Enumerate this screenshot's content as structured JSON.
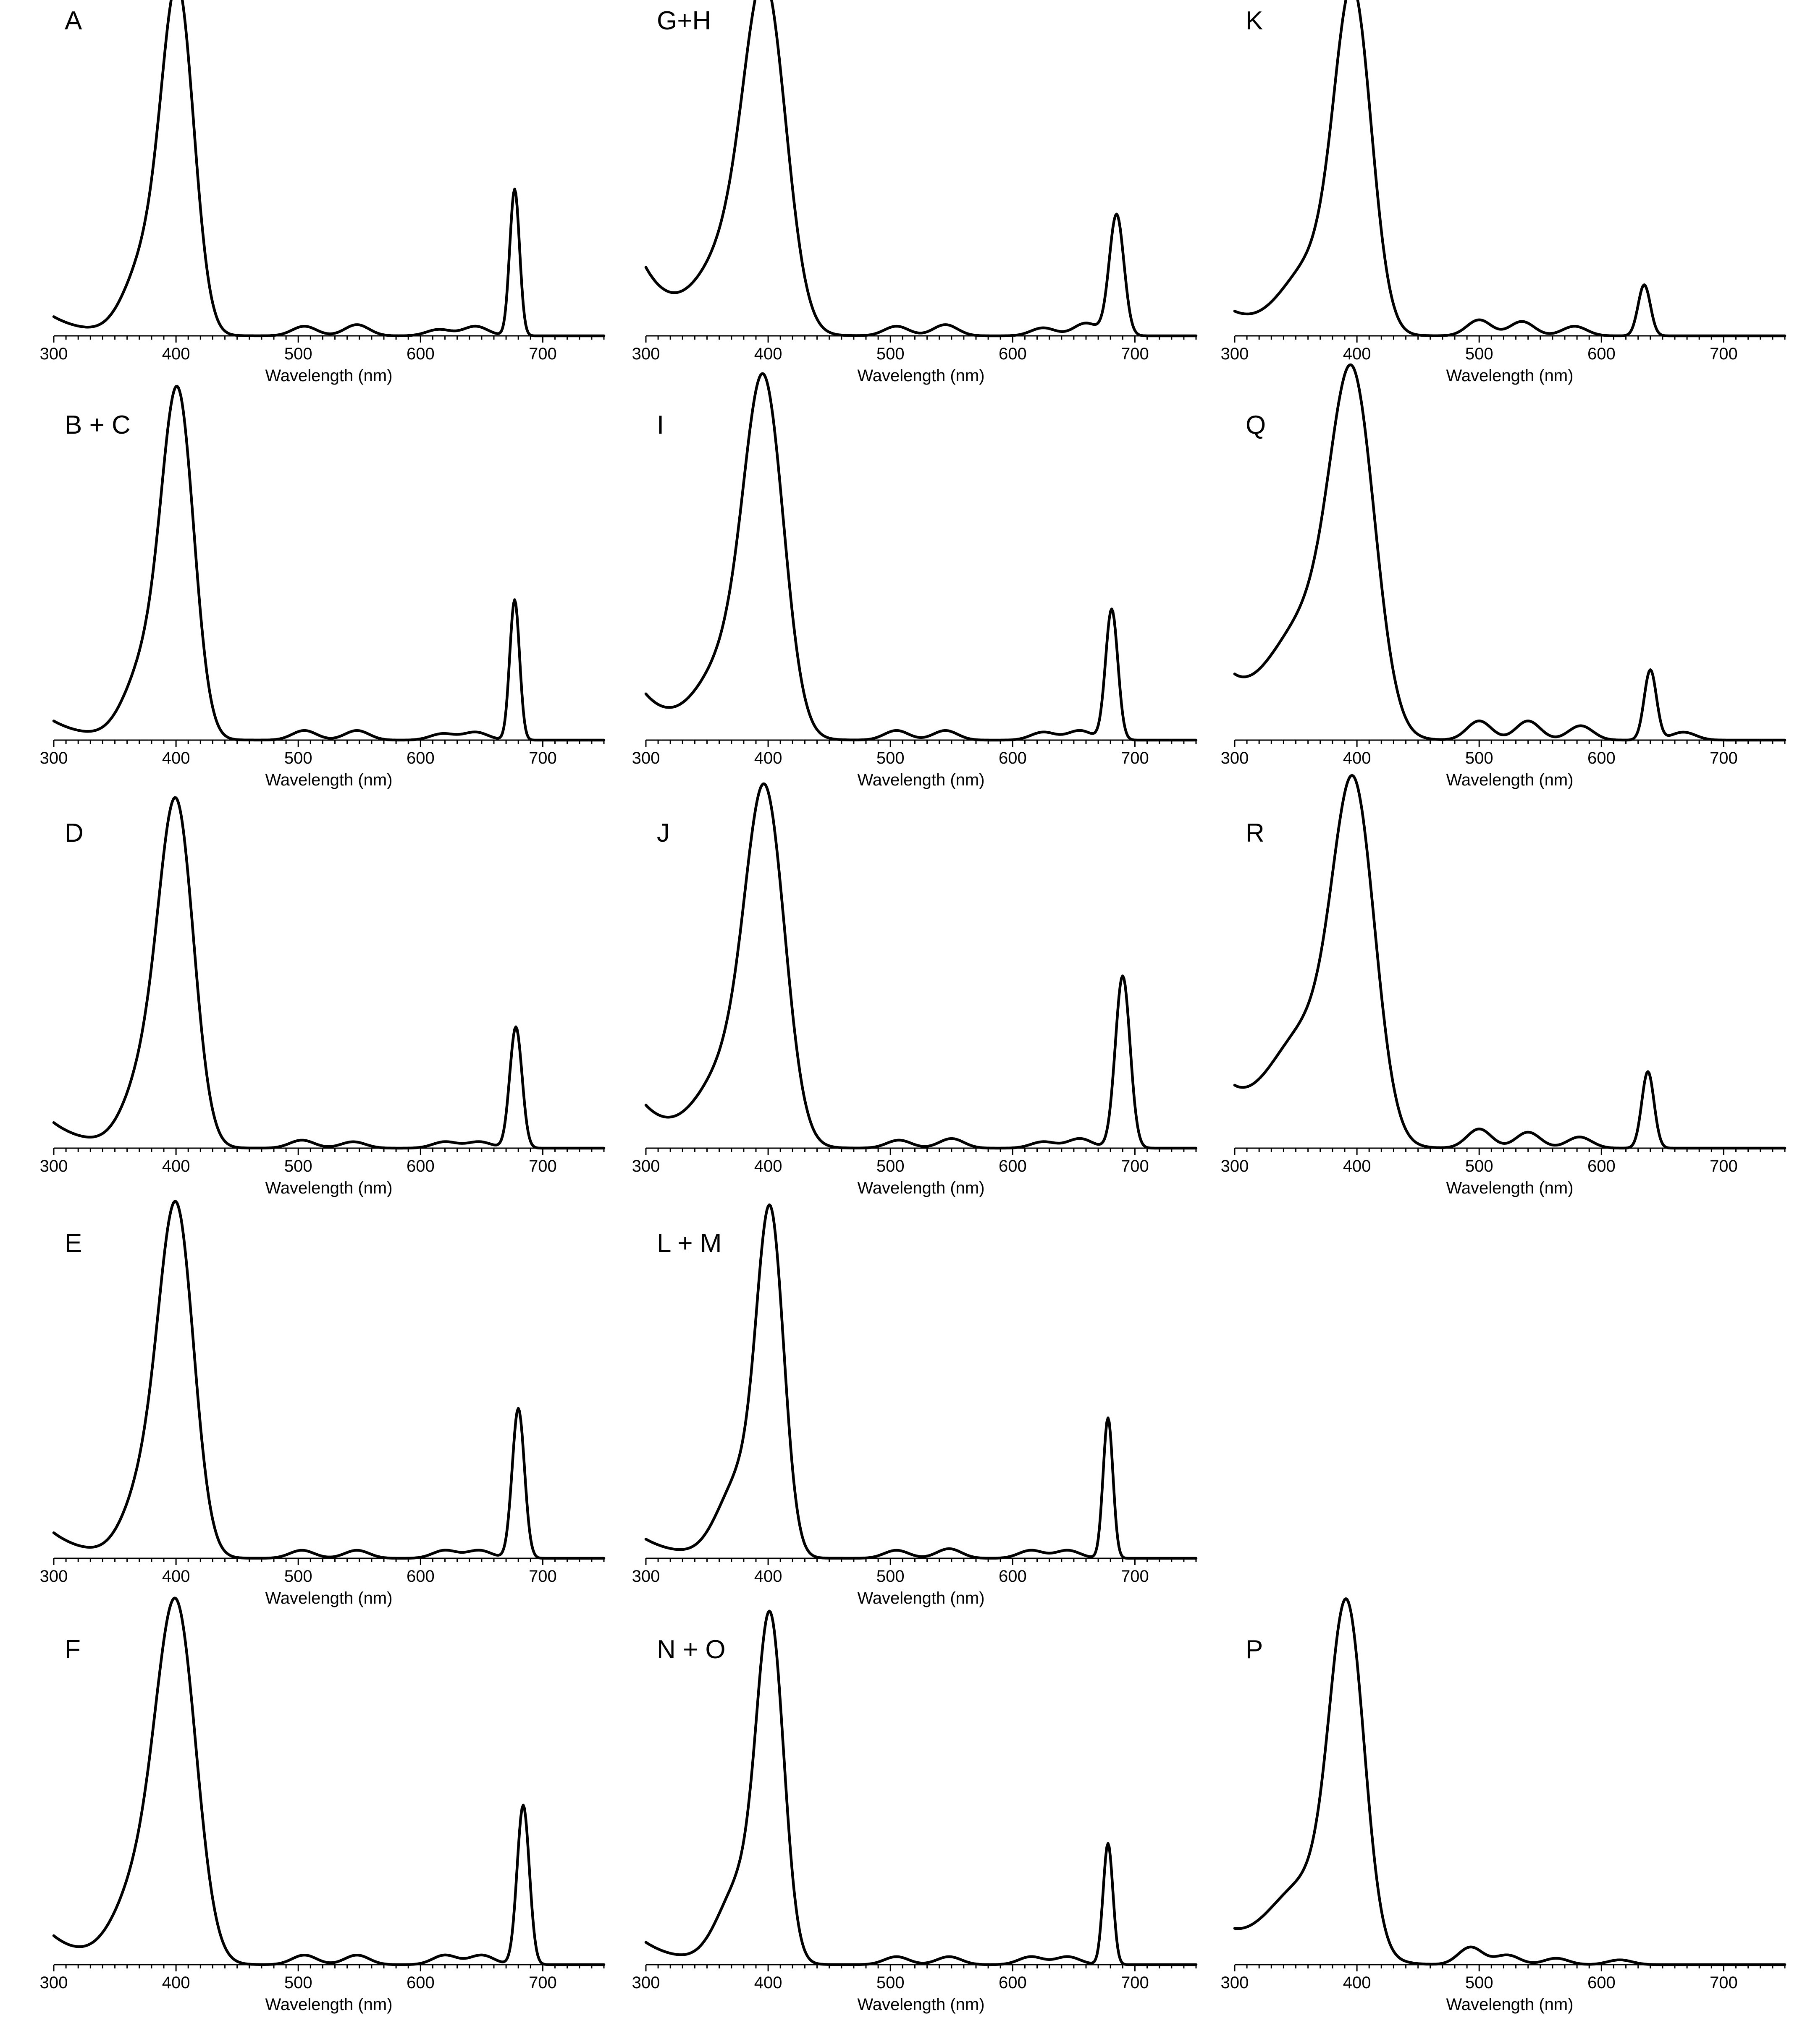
{
  "chart_data": [
    {
      "type": "line",
      "panel_label": "A",
      "xlabel": "Wavelength (nm)",
      "ylabel": "",
      "xlim": [
        300,
        750
      ],
      "xticks": [
        300,
        400,
        500,
        600,
        700
      ],
      "soret": {
        "center": 402,
        "height": 1.0,
        "width": 13
      },
      "shoulder": {
        "center": 378,
        "height": 0.25,
        "width": 18
      },
      "qbands": [
        {
          "x": 505,
          "h": 0.03
        },
        {
          "x": 548,
          "h": 0.035
        },
        {
          "x": 615,
          "h": 0.02
        },
        {
          "x": 645,
          "h": 0.03
        }
      ],
      "red_band": {
        "x": 677,
        "h": 0.46,
        "w": 4
      },
      "uv_tail": 0.06
    },
    {
      "type": "line",
      "panel_label": "G+H",
      "xlabel": "Wavelength (nm)",
      "ylabel": "",
      "xlim": [
        300,
        750
      ],
      "xticks": [
        300,
        400,
        500,
        600,
        700
      ],
      "soret": {
        "center": 398,
        "height": 0.98,
        "width": 17
      },
      "shoulder": {
        "center": 370,
        "height": 0.25,
        "width": 25
      },
      "qbands": [
        {
          "x": 505,
          "h": 0.03
        },
        {
          "x": 545,
          "h": 0.035
        },
        {
          "x": 625,
          "h": 0.025
        },
        {
          "x": 660,
          "h": 0.04
        }
      ],
      "red_band": {
        "x": 685,
        "h": 0.38,
        "w": 6
      },
      "uv_tail": 0.21
    },
    {
      "type": "line",
      "panel_label": "K",
      "xlabel": "Wavelength (nm)",
      "ylabel": "",
      "xlim": [
        300,
        750
      ],
      "xticks": [
        300,
        400,
        500,
        600,
        700
      ],
      "soret": {
        "center": 397,
        "height": 1.0,
        "width": 15
      },
      "shoulder": {
        "center": 365,
        "height": 0.22,
        "width": 25
      },
      "qbands": [
        {
          "x": 500,
          "h": 0.05
        },
        {
          "x": 535,
          "h": 0.045
        },
        {
          "x": 578,
          "h": 0.03
        }
      ],
      "red_band": {
        "x": 635,
        "h": 0.16,
        "w": 5
      },
      "uv_tail": 0.07
    },
    {
      "type": "line",
      "panel_label": "B + C",
      "xlabel": "Wavelength (nm)",
      "ylabel": "",
      "xlim": [
        300,
        750
      ],
      "xticks": [
        300,
        400,
        500,
        600,
        700
      ],
      "soret": {
        "center": 402,
        "height": 1.0,
        "width": 13
      },
      "shoulder": {
        "center": 378,
        "height": 0.25,
        "width": 18
      },
      "qbands": [
        {
          "x": 505,
          "h": 0.03
        },
        {
          "x": 548,
          "h": 0.03
        },
        {
          "x": 618,
          "h": 0.02
        },
        {
          "x": 645,
          "h": 0.025
        }
      ],
      "red_band": {
        "x": 677,
        "h": 0.44,
        "w": 4
      },
      "uv_tail": 0.06
    },
    {
      "type": "line",
      "panel_label": "I",
      "xlabel": "Wavelength (nm)",
      "ylabel": "",
      "xlim": [
        300,
        750
      ],
      "xticks": [
        300,
        400,
        500,
        600,
        700
      ],
      "soret": {
        "center": 397,
        "height": 1.0,
        "width": 16
      },
      "shoulder": {
        "center": 370,
        "height": 0.25,
        "width": 25
      },
      "qbands": [
        {
          "x": 505,
          "h": 0.03
        },
        {
          "x": 545,
          "h": 0.03
        },
        {
          "x": 625,
          "h": 0.025
        },
        {
          "x": 655,
          "h": 0.03
        }
      ],
      "red_band": {
        "x": 681,
        "h": 0.41,
        "w": 5
      },
      "uv_tail": 0.14
    },
    {
      "type": "line",
      "panel_label": "Q",
      "xlabel": "Wavelength (nm)",
      "ylabel": "",
      "xlim": [
        300,
        750
      ],
      "xticks": [
        300,
        400,
        500,
        600,
        700
      ],
      "soret": {
        "center": 397,
        "height": 1.0,
        "width": 18
      },
      "shoulder": {
        "center": 360,
        "height": 0.35,
        "width": 30
      },
      "qbands": [
        {
          "x": 500,
          "h": 0.06
        },
        {
          "x": 540,
          "h": 0.06
        },
        {
          "x": 583,
          "h": 0.045
        },
        {
          "x": 667,
          "h": 0.025
        }
      ],
      "red_band": {
        "x": 640,
        "h": 0.22,
        "w": 5
      },
      "uv_tail": 0.16
    },
    {
      "type": "line",
      "panel_label": "D",
      "xlabel": "Wavelength (nm)",
      "ylabel": "",
      "xlim": [
        300,
        750
      ],
      "xticks": [
        300,
        400,
        500,
        600,
        700
      ],
      "soret": {
        "center": 401,
        "height": 0.98,
        "width": 14
      },
      "shoulder": {
        "center": 378,
        "height": 0.25,
        "width": 18
      },
      "qbands": [
        {
          "x": 503,
          "h": 0.025
        },
        {
          "x": 545,
          "h": 0.02
        },
        {
          "x": 620,
          "h": 0.02
        },
        {
          "x": 648,
          "h": 0.02
        }
      ],
      "red_band": {
        "x": 678,
        "h": 0.38,
        "w": 5
      },
      "uv_tail": 0.08
    },
    {
      "type": "line",
      "panel_label": "J",
      "xlabel": "Wavelength (nm)",
      "ylabel": "",
      "xlim": [
        300,
        750
      ],
      "xticks": [
        300,
        400,
        500,
        600,
        700
      ],
      "soret": {
        "center": 398,
        "height": 1.0,
        "width": 16
      },
      "shoulder": {
        "center": 370,
        "height": 0.25,
        "width": 25
      },
      "qbands": [
        {
          "x": 507,
          "h": 0.025
        },
        {
          "x": 550,
          "h": 0.03
        },
        {
          "x": 625,
          "h": 0.02
        },
        {
          "x": 655,
          "h": 0.03
        }
      ],
      "red_band": {
        "x": 690,
        "h": 0.54,
        "w": 6
      },
      "uv_tail": 0.13
    },
    {
      "type": "line",
      "panel_label": "R",
      "xlabel": "Wavelength (nm)",
      "ylabel": "",
      "xlim": [
        300,
        750
      ],
      "xticks": [
        300,
        400,
        500,
        600,
        700
      ],
      "soret": {
        "center": 398,
        "height": 1.0,
        "width": 17
      },
      "shoulder": {
        "center": 360,
        "height": 0.35,
        "width": 30
      },
      "qbands": [
        {
          "x": 500,
          "h": 0.06
        },
        {
          "x": 540,
          "h": 0.05
        },
        {
          "x": 582,
          "h": 0.035
        }
      ],
      "red_band": {
        "x": 638,
        "h": 0.24,
        "w": 5
      },
      "uv_tail": 0.15
    },
    {
      "type": "line",
      "panel_label": "E",
      "xlabel": "Wavelength (nm)",
      "ylabel": "",
      "xlim": [
        300,
        750
      ],
      "xticks": [
        300,
        400,
        500,
        600,
        700
      ],
      "soret": {
        "center": 401,
        "height": 1.0,
        "width": 14
      },
      "shoulder": {
        "center": 378,
        "height": 0.25,
        "width": 18
      },
      "qbands": [
        {
          "x": 503,
          "h": 0.025
        },
        {
          "x": 548,
          "h": 0.025
        },
        {
          "x": 620,
          "h": 0.025
        },
        {
          "x": 648,
          "h": 0.025
        }
      ],
      "red_band": {
        "x": 680,
        "h": 0.47,
        "w": 5
      },
      "uv_tail": 0.08
    },
    {
      "type": "line",
      "panel_label": "L + M",
      "xlabel": "Wavelength (nm)",
      "ylabel": "",
      "xlim": [
        300,
        750
      ],
      "xticks": [
        300,
        400,
        500,
        600,
        700
      ],
      "soret": {
        "center": 402,
        "height": 1.0,
        "width": 11
      },
      "shoulder": {
        "center": 378,
        "height": 0.25,
        "width": 18
      },
      "qbands": [
        {
          "x": 505,
          "h": 0.025
        },
        {
          "x": 548,
          "h": 0.03
        },
        {
          "x": 615,
          "h": 0.025
        },
        {
          "x": 645,
          "h": 0.025
        }
      ],
      "red_band": {
        "x": 678,
        "h": 0.44,
        "w": 4
      },
      "uv_tail": 0.06
    },
    {
      "type": "line",
      "panel_label": "F",
      "xlabel": "Wavelength (nm)",
      "ylabel": "",
      "xlim": [
        300,
        750
      ],
      "xticks": [
        300,
        400,
        500,
        600,
        700
      ],
      "soret": {
        "center": 401,
        "height": 1.0,
        "width": 16
      },
      "shoulder": {
        "center": 375,
        "height": 0.28,
        "width": 22
      },
      "qbands": [
        {
          "x": 505,
          "h": 0.03
        },
        {
          "x": 548,
          "h": 0.03
        },
        {
          "x": 620,
          "h": 0.03
        },
        {
          "x": 650,
          "h": 0.03
        }
      ],
      "red_band": {
        "x": 684,
        "h": 0.5,
        "w": 5
      },
      "uv_tail": 0.09
    },
    {
      "type": "line",
      "panel_label": "N + O",
      "xlabel": "Wavelength (nm)",
      "ylabel": "",
      "xlim": [
        300,
        750
      ],
      "xticks": [
        300,
        400,
        500,
        600,
        700
      ],
      "soret": {
        "center": 402,
        "height": 1.0,
        "width": 11
      },
      "shoulder": {
        "center": 378,
        "height": 0.25,
        "width": 18
      },
      "qbands": [
        {
          "x": 505,
          "h": 0.025
        },
        {
          "x": 548,
          "h": 0.025
        },
        {
          "x": 615,
          "h": 0.025
        },
        {
          "x": 645,
          "h": 0.025
        }
      ],
      "red_band": {
        "x": 678,
        "h": 0.38,
        "w": 4
      },
      "uv_tail": 0.07
    },
    {
      "type": "line",
      "panel_label": "P",
      "xlabel": "Wavelength (nm)",
      "ylabel": "",
      "xlim": [
        300,
        750
      ],
      "xticks": [
        300,
        400,
        500,
        600,
        700
      ],
      "soret": {
        "center": 392,
        "height": 1.0,
        "width": 14
      },
      "shoulder": {
        "center": 360,
        "height": 0.25,
        "width": 30
      },
      "qbands": [
        {
          "x": 493,
          "h": 0.055
        },
        {
          "x": 523,
          "h": 0.03
        },
        {
          "x": 563,
          "h": 0.02
        },
        {
          "x": 615,
          "h": 0.015
        }
      ],
      "red_band": null,
      "uv_tail": 0.08
    }
  ]
}
